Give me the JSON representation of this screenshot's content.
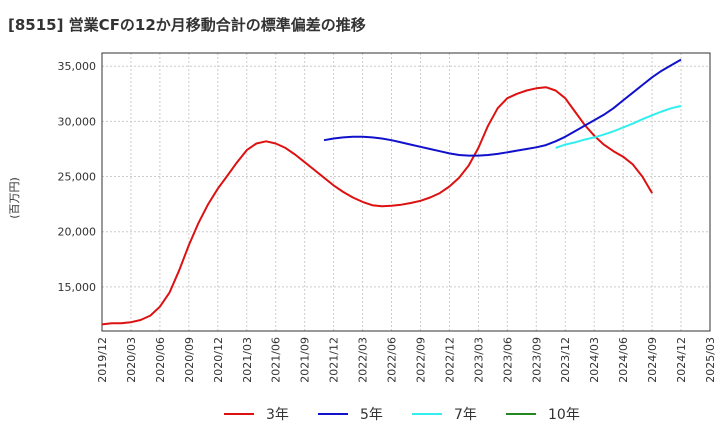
{
  "chart_data": {
    "type": "line",
    "title": "[8515]  営業CFの12か月移動合計の標準偏差の推移",
    "ylabel": "(百万円)",
    "ylim": [
      11000,
      36200
    ],
    "y_ticks": [
      15000,
      20000,
      25000,
      30000,
      35000
    ],
    "y_tick_labels": [
      "15,000",
      "20,000",
      "25,000",
      "30,000",
      "35,000"
    ],
    "x_tick_labels": [
      "2019/12",
      "2020/03",
      "2020/06",
      "2020/09",
      "2020/12",
      "2021/03",
      "2021/06",
      "2021/09",
      "2021/12",
      "2022/03",
      "2022/06",
      "2022/09",
      "2022/12",
      "2023/03",
      "2023/06",
      "2023/09",
      "2023/12",
      "2024/03",
      "2024/06",
      "2024/09",
      "2024/12",
      "2025/03"
    ],
    "grid": true,
    "legend_position": "bottom",
    "series": [
      {
        "name": "3年",
        "color": "#dd1111",
        "x": [
          "2019/12",
          "2020/01",
          "2020/02",
          "2020/03",
          "2020/04",
          "2020/05",
          "2020/06",
          "2020/07",
          "2020/08",
          "2020/09",
          "2020/10",
          "2020/11",
          "2020/12",
          "2021/01",
          "2021/02",
          "2021/03",
          "2021/04",
          "2021/05",
          "2021/06",
          "2021/07",
          "2021/08",
          "2021/09",
          "2021/10",
          "2021/11",
          "2021/12",
          "2022/01",
          "2022/02",
          "2022/03",
          "2022/04",
          "2022/05",
          "2022/06",
          "2022/07",
          "2022/08",
          "2022/09",
          "2022/10",
          "2022/11",
          "2022/12",
          "2023/01",
          "2023/02",
          "2023/03",
          "2023/04",
          "2023/05",
          "2023/06",
          "2023/07",
          "2023/08",
          "2023/09",
          "2023/10",
          "2023/11",
          "2023/12",
          "2024/01",
          "2024/02",
          "2024/03",
          "2024/04",
          "2024/05",
          "2024/06",
          "2024/07",
          "2024/08",
          "2024/09",
          "2024/10",
          "2024/11",
          "2024/12"
        ],
        "values": [
          11600,
          11700,
          11700,
          11800,
          12000,
          12400,
          13200,
          14500,
          16500,
          18800,
          20800,
          22500,
          23900,
          25100,
          26300,
          27400,
          28000,
          28200,
          28000,
          27600,
          27000,
          26300,
          25600,
          24900,
          24200,
          23600,
          23100,
          22700,
          22400,
          22300,
          22350,
          22450,
          22600,
          22800,
          23100,
          23500,
          24100,
          24900,
          26000,
          27600,
          29600,
          31200,
          32100,
          32500,
          32800,
          33000,
          33100,
          32800,
          32100,
          30900,
          29700,
          28700,
          27900,
          27300,
          26800,
          26100,
          25000,
          23500,
          null,
          null,
          null
        ],
        "values_note": "",
        "shift": 0
      },
      {
        "name": "5年",
        "color": "#1111cc",
        "x": [
          "2021/11",
          "2021/12",
          "2022/01",
          "2022/02",
          "2022/03",
          "2022/04",
          "2022/05",
          "2022/06",
          "2022/07",
          "2022/08",
          "2022/09",
          "2022/10",
          "2022/11",
          "2022/12",
          "2023/01",
          "2023/02",
          "2023/03",
          "2023/04",
          "2023/05",
          "2023/06",
          "2023/07",
          "2023/08",
          "2023/09",
          "2023/10",
          "2023/11",
          "2023/12",
          "2024/01",
          "2024/02",
          "2024/03",
          "2024/04",
          "2024/05",
          "2024/06",
          "2024/07",
          "2024/08",
          "2024/09",
          "2024/10",
          "2024/11",
          "2024/12"
        ],
        "values": [
          28300,
          28450,
          28550,
          28600,
          28600,
          28550,
          28450,
          28300,
          28100,
          27900,
          27700,
          27500,
          27300,
          27100,
          26950,
          26900,
          26900,
          26950,
          27050,
          27200,
          27350,
          27500,
          27650,
          27850,
          28200,
          28600,
          29100,
          29600,
          30100,
          30600,
          31200,
          31900,
          32600,
          33300,
          34000,
          34600,
          35100,
          35600
        ]
      },
      {
        "name": "7年",
        "color": "#33eeee",
        "x": [
          "2023/11",
          "2023/12",
          "2024/01",
          "2024/02",
          "2024/03",
          "2024/04",
          "2024/05",
          "2024/06",
          "2024/07",
          "2024/08",
          "2024/09",
          "2024/10",
          "2024/11",
          "2024/12"
        ],
        "values": [
          27600,
          27900,
          28100,
          28350,
          28550,
          28800,
          29100,
          29450,
          29800,
          30200,
          30550,
          30900,
          31200,
          31400
        ]
      },
      {
        "name": "10年",
        "color": "#228822",
        "x": [],
        "values": []
      }
    ]
  }
}
